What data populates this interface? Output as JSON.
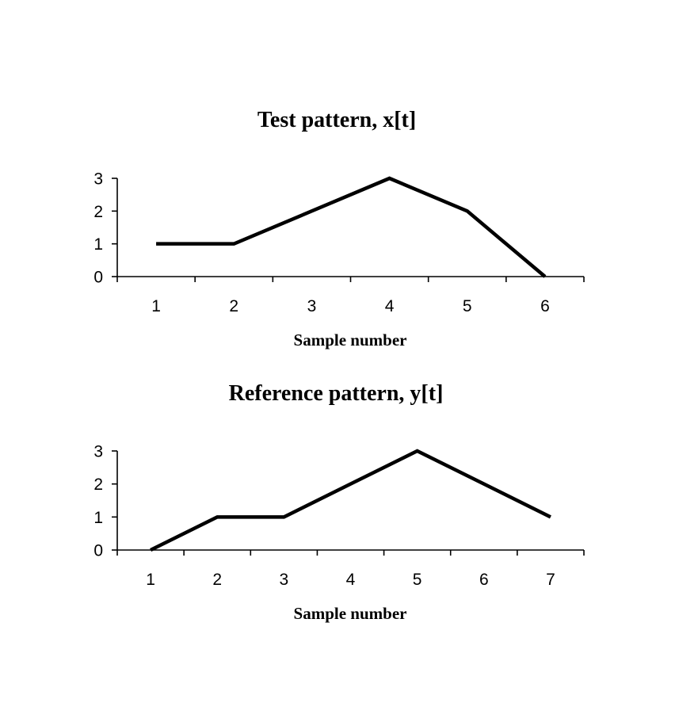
{
  "chart_data": [
    {
      "type": "line",
      "title": "Test pattern, x[t]",
      "xlabel": "Sample number",
      "ylabel": "",
      "categories": [
        "1",
        "2",
        "3",
        "4",
        "5",
        "6"
      ],
      "series": [
        {
          "values": [
            1,
            1,
            2,
            3,
            2,
            0
          ]
        }
      ],
      "ylim": [
        0,
        3
      ],
      "yticks": [
        "0",
        "1",
        "2",
        "3"
      ],
      "grid": false,
      "color": "#000000"
    },
    {
      "type": "line",
      "title": "Reference pattern, y[t]",
      "xlabel": "Sample number",
      "ylabel": "",
      "categories": [
        "1",
        "2",
        "3",
        "4",
        "5",
        "6",
        "7"
      ],
      "series": [
        {
          "values": [
            0,
            1,
            1,
            2,
            3,
            2,
            1
          ]
        }
      ],
      "ylim": [
        0,
        3
      ],
      "yticks": [
        "0",
        "1",
        "2",
        "3"
      ],
      "grid": false,
      "color": "#000000"
    }
  ]
}
